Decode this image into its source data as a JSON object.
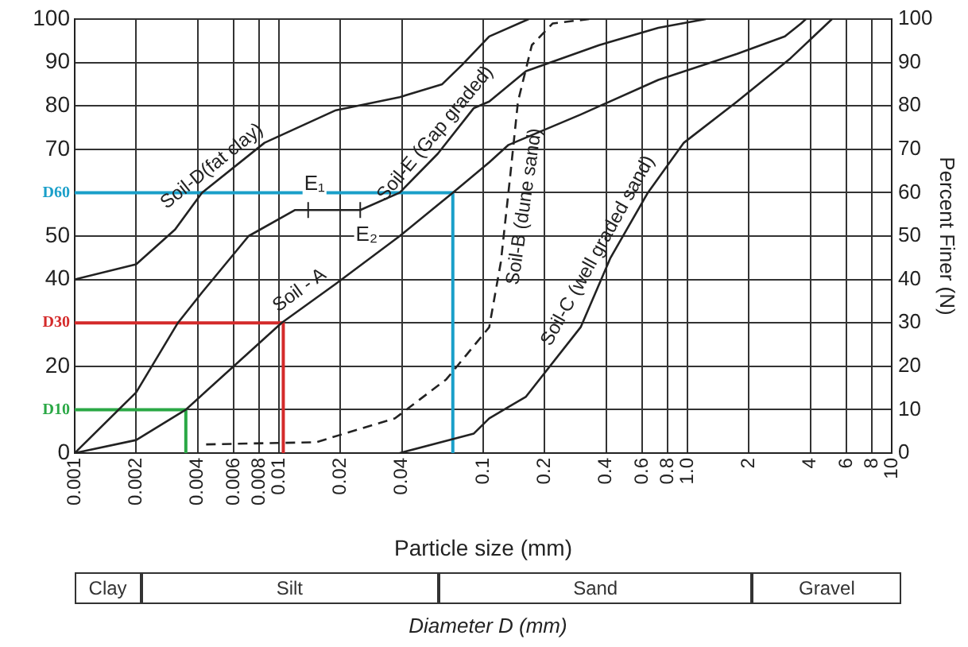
{
  "chart_data": {
    "type": "line",
    "xlabel": "Particle size (mm)",
    "y2label": "Percent Finer (N)",
    "log": "x",
    "grid": true,
    "legend": false,
    "marker": "none",
    "line_style": "solid",
    "xlim": [
      0.001,
      10
    ],
    "xticks": [
      0.001,
      0.002,
      0.004,
      0.006,
      0.008,
      0.01,
      0.02,
      0.04,
      0.1,
      0.2,
      0.4,
      0.6,
      0.8,
      {
        "value": 1,
        "label": "1.0"
      },
      2,
      4,
      6,
      8,
      10
    ],
    "ylim": [
      0,
      100
    ],
    "yticks": [
      0,
      {
        "value": 10,
        "label": "D10"
      },
      20,
      {
        "value": 30,
        "label": "D30"
      },
      40,
      50,
      {
        "value": 60,
        "label": "D60"
      },
      70,
      80,
      90,
      100
    ],
    "y2lim": [
      0,
      100
    ],
    "y2ticks": [
      0,
      10,
      20,
      30,
      40,
      50,
      60,
      70,
      80,
      90,
      100
    ],
    "series": [
      {
        "name": "Soil-D(fat clay)",
        "color": "#222222",
        "x": [
          0.001,
          0.002,
          0.0031,
          0.0042,
          0.0085,
          0.019,
          0.039,
          0.063,
          0.079,
          0.107,
          0.167
        ],
        "values": [
          40,
          43.5,
          51.5,
          60,
          71.5,
          79,
          82,
          85,
          89.5,
          96,
          100
        ]
      },
      {
        "name": "Soil-E (Gap graded)",
        "color": "#222222",
        "x": [
          0.001,
          0.002,
          0.0032,
          0.0042,
          0.0071,
          0.012,
          0.014,
          0.025,
          0.039,
          0.06,
          0.09,
          0.107,
          0.162,
          0.37,
          0.72,
          1.23
        ],
        "values": [
          0,
          14,
          30,
          37,
          50,
          56,
          56,
          56,
          60,
          69,
          79.5,
          81,
          88,
          94,
          98,
          100
        ]
      },
      {
        "name": "Soil - A",
        "color": "#222222",
        "x": [
          0.001,
          0.002,
          0.0035,
          0.0103,
          0.019,
          0.039,
          0.071,
          0.107,
          0.133,
          0.3,
          0.72,
          1.75,
          3,
          3.6,
          3.8
        ],
        "values": [
          0,
          3,
          10,
          30,
          39,
          50,
          60,
          67,
          71,
          78,
          86,
          92,
          96,
          99,
          100
        ]
      },
      {
        "name": "Soil-B (dune sand)",
        "color": "#222222",
        "line_style": "dashed",
        "x": [
          0.0044,
          0.0152,
          0.037,
          0.066,
          0.107,
          0.122,
          0.135,
          0.148,
          0.173,
          0.219,
          0.33
        ],
        "values": [
          2,
          2.5,
          8,
          17,
          29,
          44,
          63,
          81,
          94,
          99,
          100
        ]
      },
      {
        "name": "Soil-C (well graded sand)",
        "color": "#222222",
        "x": [
          0.039,
          0.09,
          0.107,
          0.162,
          0.3,
          0.42,
          0.64,
          0.96,
          1.75,
          3.2,
          5.1
        ],
        "values": [
          0,
          4.5,
          8,
          13,
          29,
          45,
          60,
          71.5,
          81,
          91,
          100
        ]
      },
      {
        "type": "line",
        "color": "#1a9fc9",
        "x": [
          0.001,
          0.071,
          0.071
        ],
        "values": [
          60,
          60,
          0
        ]
      },
      {
        "type": "line",
        "color": "#d42a2a",
        "x": [
          0.001,
          0.0105,
          0.0105
        ],
        "values": [
          30,
          30,
          0
        ]
      },
      {
        "type": "line",
        "color": "#2aa845",
        "x": [
          0.001,
          0.0035,
          0.0035
        ],
        "values": [
          10,
          10,
          0
        ]
      }
    ],
    "annotations": [
      {
        "text": "E₁",
        "x": 0.0139,
        "y": 56
      },
      {
        "text": "E₂",
        "x": 0.025,
        "y": 56
      },
      "Clay",
      "Silt",
      "Sand",
      "Gravel",
      "Diameter D (mm)"
    ]
  }
}
